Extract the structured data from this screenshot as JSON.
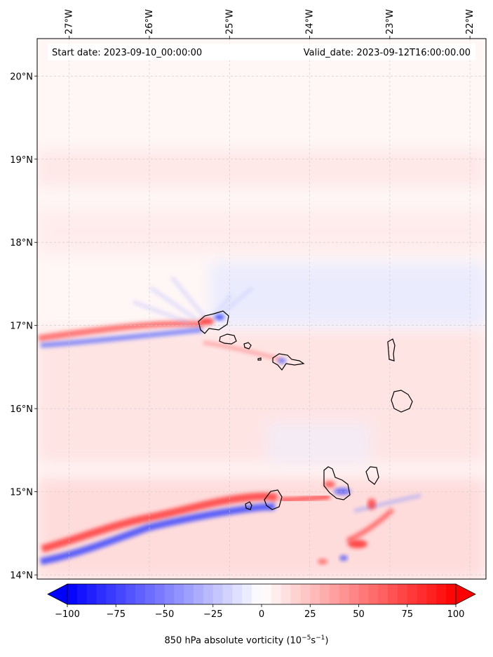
{
  "header": {
    "start_date": "Start date: 2023-09-10_00:00:00",
    "valid_date": "Valid_date: 2023-09-12T16:00:00.00"
  },
  "axes": {
    "lon_range": [
      -27.4,
      -21.8
    ],
    "lat_range": [
      13.95,
      20.45
    ],
    "lon_ticks": [
      {
        "value": -27,
        "label": "27°W"
      },
      {
        "value": -26,
        "label": "26°W"
      },
      {
        "value": -25,
        "label": "25°W"
      },
      {
        "value": -24,
        "label": "24°W"
      },
      {
        "value": -23,
        "label": "23°W"
      },
      {
        "value": -22,
        "label": "22°W"
      }
    ],
    "lat_ticks": [
      {
        "value": 20,
        "label": "20°N"
      },
      {
        "value": 19,
        "label": "19°N"
      },
      {
        "value": 18,
        "label": "18°N"
      },
      {
        "value": 17,
        "label": "17°N"
      },
      {
        "value": 16,
        "label": "16°N"
      },
      {
        "value": 15,
        "label": "15°N"
      },
      {
        "value": 14,
        "label": "14°N"
      }
    ],
    "grid": true
  },
  "colorbar": {
    "label": "850 hPa absolute vorticity (10",
    "label_exp1": "−5",
    "label_mid": "s",
    "label_exp2": "−1",
    "label_end": ")",
    "min": -100,
    "max": 100,
    "colormap": "bwr",
    "extend": "both",
    "ticks": [
      {
        "value": -100,
        "label": "−100"
      },
      {
        "value": -75,
        "label": "−75"
      },
      {
        "value": -50,
        "label": "−50"
      },
      {
        "value": -25,
        "label": "−25"
      },
      {
        "value": 0,
        "label": "0"
      },
      {
        "value": 25,
        "label": "25"
      },
      {
        "value": 50,
        "label": "50"
      },
      {
        "value": 75,
        "label": "75"
      },
      {
        "value": 100,
        "label": "100"
      }
    ]
  },
  "colors": {
    "negative": "#0000ff",
    "positive": "#ff0000",
    "neutral": "#ffffff",
    "coastline": "#000000",
    "grid": "#c8c8c8"
  }
}
